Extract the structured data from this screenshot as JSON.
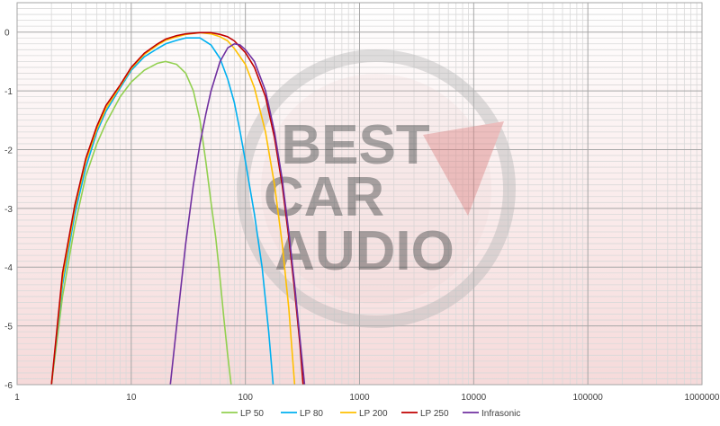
{
  "chart_data": {
    "type": "line",
    "title": "",
    "xlabel": "",
    "ylabel": "",
    "x_scale": "log",
    "xlim": [
      1,
      1000000
    ],
    "ylim": [
      -6,
      0.5
    ],
    "grid": true,
    "legend_position": "bottom",
    "x_ticks": [
      "1",
      "10",
      "100",
      "1000",
      "10000",
      "100000",
      "1000000"
    ],
    "y_ticks": [
      "-6",
      "-5",
      "-4",
      "-3",
      "-2",
      "-1",
      "0"
    ],
    "watermark": {
      "line1": "BEST",
      "line2": "CAR",
      "line3": "AUDIO"
    },
    "series": [
      {
        "name": "LP 50",
        "color": "#92d050",
        "points": [
          [
            2.0,
            -6
          ],
          [
            2.5,
            -4.5
          ],
          [
            3.2,
            -3.3
          ],
          [
            4.0,
            -2.45
          ],
          [
            5.0,
            -1.9
          ],
          [
            6.0,
            -1.55
          ],
          [
            8.0,
            -1.1
          ],
          [
            10.0,
            -0.85
          ],
          [
            13.0,
            -0.65
          ],
          [
            17.0,
            -0.53
          ],
          [
            20.0,
            -0.5
          ],
          [
            25.0,
            -0.55
          ],
          [
            30.0,
            -0.7
          ],
          [
            35.0,
            -1.0
          ],
          [
            40.0,
            -1.5
          ],
          [
            45.0,
            -2.2
          ],
          [
            50.0,
            -2.9
          ],
          [
            55.0,
            -3.5
          ],
          [
            60.0,
            -4.2
          ],
          [
            65.0,
            -4.9
          ],
          [
            70.0,
            -5.5
          ],
          [
            75.0,
            -6
          ]
        ]
      },
      {
        "name": "LP 80",
        "color": "#00b0f0",
        "points": [
          [
            2.0,
            -6
          ],
          [
            2.5,
            -4.3
          ],
          [
            3.2,
            -3.1
          ],
          [
            4.0,
            -2.3
          ],
          [
            5.0,
            -1.7
          ],
          [
            6.0,
            -1.35
          ],
          [
            8.0,
            -0.95
          ],
          [
            10.0,
            -0.65
          ],
          [
            13.0,
            -0.42
          ],
          [
            17.0,
            -0.28
          ],
          [
            20.0,
            -0.2
          ],
          [
            25.0,
            -0.14
          ],
          [
            30.0,
            -0.1
          ],
          [
            40.0,
            -0.1
          ],
          [
            50.0,
            -0.22
          ],
          [
            60.0,
            -0.45
          ],
          [
            70.0,
            -0.8
          ],
          [
            80.0,
            -1.2
          ],
          [
            90.0,
            -1.7
          ],
          [
            100.0,
            -2.2
          ],
          [
            120.0,
            -3.1
          ],
          [
            140.0,
            -4.0
          ],
          [
            160.0,
            -5.1
          ],
          [
            175.0,
            -6
          ]
        ]
      },
      {
        "name": "LP 200",
        "color": "#ffc000",
        "points": [
          [
            2.0,
            -6
          ],
          [
            2.5,
            -4.2
          ],
          [
            3.2,
            -3.0
          ],
          [
            4.0,
            -2.2
          ],
          [
            5.0,
            -1.65
          ],
          [
            6.0,
            -1.3
          ],
          [
            8.0,
            -0.92
          ],
          [
            10.0,
            -0.62
          ],
          [
            13.0,
            -0.38
          ],
          [
            17.0,
            -0.22
          ],
          [
            20.0,
            -0.14
          ],
          [
            25.0,
            -0.08
          ],
          [
            30.0,
            -0.04
          ],
          [
            40.0,
            -0.01
          ],
          [
            50.0,
            -0.03
          ],
          [
            60.0,
            -0.08
          ],
          [
            70.0,
            -0.15
          ],
          [
            80.0,
            -0.28
          ],
          [
            100.0,
            -0.55
          ],
          [
            120.0,
            -0.95
          ],
          [
            150.0,
            -1.7
          ],
          [
            180.0,
            -2.6
          ],
          [
            210.0,
            -3.6
          ],
          [
            240.0,
            -4.7
          ],
          [
            270.0,
            -6
          ]
        ]
      },
      {
        "name": "LP 250",
        "color": "#c00000",
        "points": [
          [
            2.0,
            -6
          ],
          [
            2.5,
            -4.1
          ],
          [
            3.2,
            -2.95
          ],
          [
            4.0,
            -2.15
          ],
          [
            5.0,
            -1.6
          ],
          [
            6.0,
            -1.25
          ],
          [
            8.0,
            -0.9
          ],
          [
            10.0,
            -0.6
          ],
          [
            13.0,
            -0.36
          ],
          [
            17.0,
            -0.2
          ],
          [
            20.0,
            -0.12
          ],
          [
            25.0,
            -0.06
          ],
          [
            30.0,
            -0.03
          ],
          [
            40.0,
            -0.01
          ],
          [
            50.0,
            -0.01
          ],
          [
            60.0,
            -0.04
          ],
          [
            70.0,
            -0.08
          ],
          [
            80.0,
            -0.15
          ],
          [
            100.0,
            -0.35
          ],
          [
            120.0,
            -0.6
          ],
          [
            150.0,
            -1.1
          ],
          [
            180.0,
            -1.8
          ],
          [
            210.0,
            -2.6
          ],
          [
            240.0,
            -3.5
          ],
          [
            270.0,
            -4.4
          ],
          [
            300.0,
            -5.3
          ],
          [
            320.0,
            -6
          ]
        ]
      },
      {
        "name": "Infrasonic",
        "color": "#7030a0",
        "points": [
          [
            22.0,
            -6
          ],
          [
            25.0,
            -5.0
          ],
          [
            30.0,
            -3.6
          ],
          [
            35.0,
            -2.6
          ],
          [
            40.0,
            -1.9
          ],
          [
            45.0,
            -1.4
          ],
          [
            50.0,
            -1.0
          ],
          [
            60.0,
            -0.5
          ],
          [
            70.0,
            -0.27
          ],
          [
            80.0,
            -0.2
          ],
          [
            90.0,
            -0.22
          ],
          [
            100.0,
            -0.3
          ],
          [
            120.0,
            -0.5
          ],
          [
            150.0,
            -1.0
          ],
          [
            180.0,
            -1.7
          ],
          [
            210.0,
            -2.5
          ],
          [
            240.0,
            -3.4
          ],
          [
            270.0,
            -4.3
          ],
          [
            300.0,
            -5.2
          ],
          [
            330.0,
            -6
          ]
        ]
      }
    ]
  }
}
